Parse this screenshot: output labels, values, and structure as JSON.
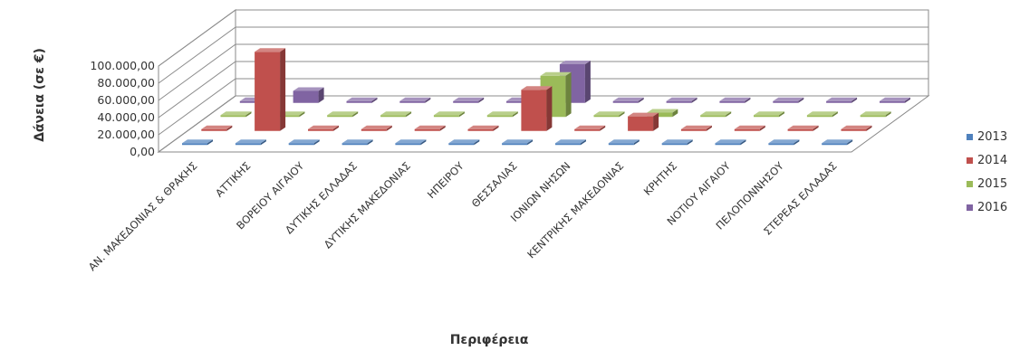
{
  "chart_data": {
    "type": "bar",
    "title": "",
    "xlabel": "Περιφέρεια",
    "ylabel": "Δάνεια  (σε €)",
    "ylim": [
      0,
      100000
    ],
    "yticks": [
      "0,00",
      "20.000,00",
      "40.000,00",
      "60.000,00",
      "80.000,00",
      "100.000,00"
    ],
    "grid": true,
    "legend_position": "right",
    "categories": [
      "ΑΝ. ΜΑΚΕΔΟΝΙΑΣ & ΘΡΑΚΗΣ",
      "ΑΤΤΙΚΗΣ",
      "ΒΟΡΕΙΟΥ ΑΙΓΑΙΟΥ",
      "ΔΥΤΙΚΗΣ ΕΛΛΑΔΑΣ",
      "ΔΥΤΙΚΗΣ ΜΑΚΕΔΟΝΙΑΣ",
      "ΗΠΕΙΡΟΥ",
      "ΘΕΣΣΑΛΙΑΣ",
      "ΙΟΝΙΩΝ ΝΗΣΩΝ",
      "ΚΕΝΤΡΙΚΗΣ ΜΑΚΕΔΟΝΙΑΣ",
      "ΚΡΗΤΗΣ",
      "ΝΟΤΙΟΥ ΑΙΓΑΙΟΥ",
      "ΠΕΛΟΠΟΝΝΗΣΟΥ",
      "ΣΤΕΡΕΑΣ ΕΛΛΑΔΑΣ"
    ],
    "series": [
      {
        "name": "2013",
        "color": "#4F81BD",
        "values": [
          0,
          0,
          0,
          0,
          0,
          0,
          0,
          0,
          0,
          0,
          0,
          0,
          0
        ]
      },
      {
        "name": "2014",
        "color": "#C0504D",
        "values": [
          0,
          92000,
          0,
          0,
          0,
          0,
          48000,
          0,
          17000,
          0,
          0,
          0,
          0
        ]
      },
      {
        "name": "2015",
        "color": "#9BBB59",
        "values": [
          0,
          0,
          0,
          0,
          0,
          0,
          48000,
          0,
          5000,
          0,
          0,
          0,
          0
        ]
      },
      {
        "name": "2016",
        "color": "#8064A2",
        "values": [
          0,
          14000,
          0,
          0,
          0,
          0,
          45000,
          0,
          0,
          0,
          0,
          0,
          0
        ]
      }
    ]
  }
}
